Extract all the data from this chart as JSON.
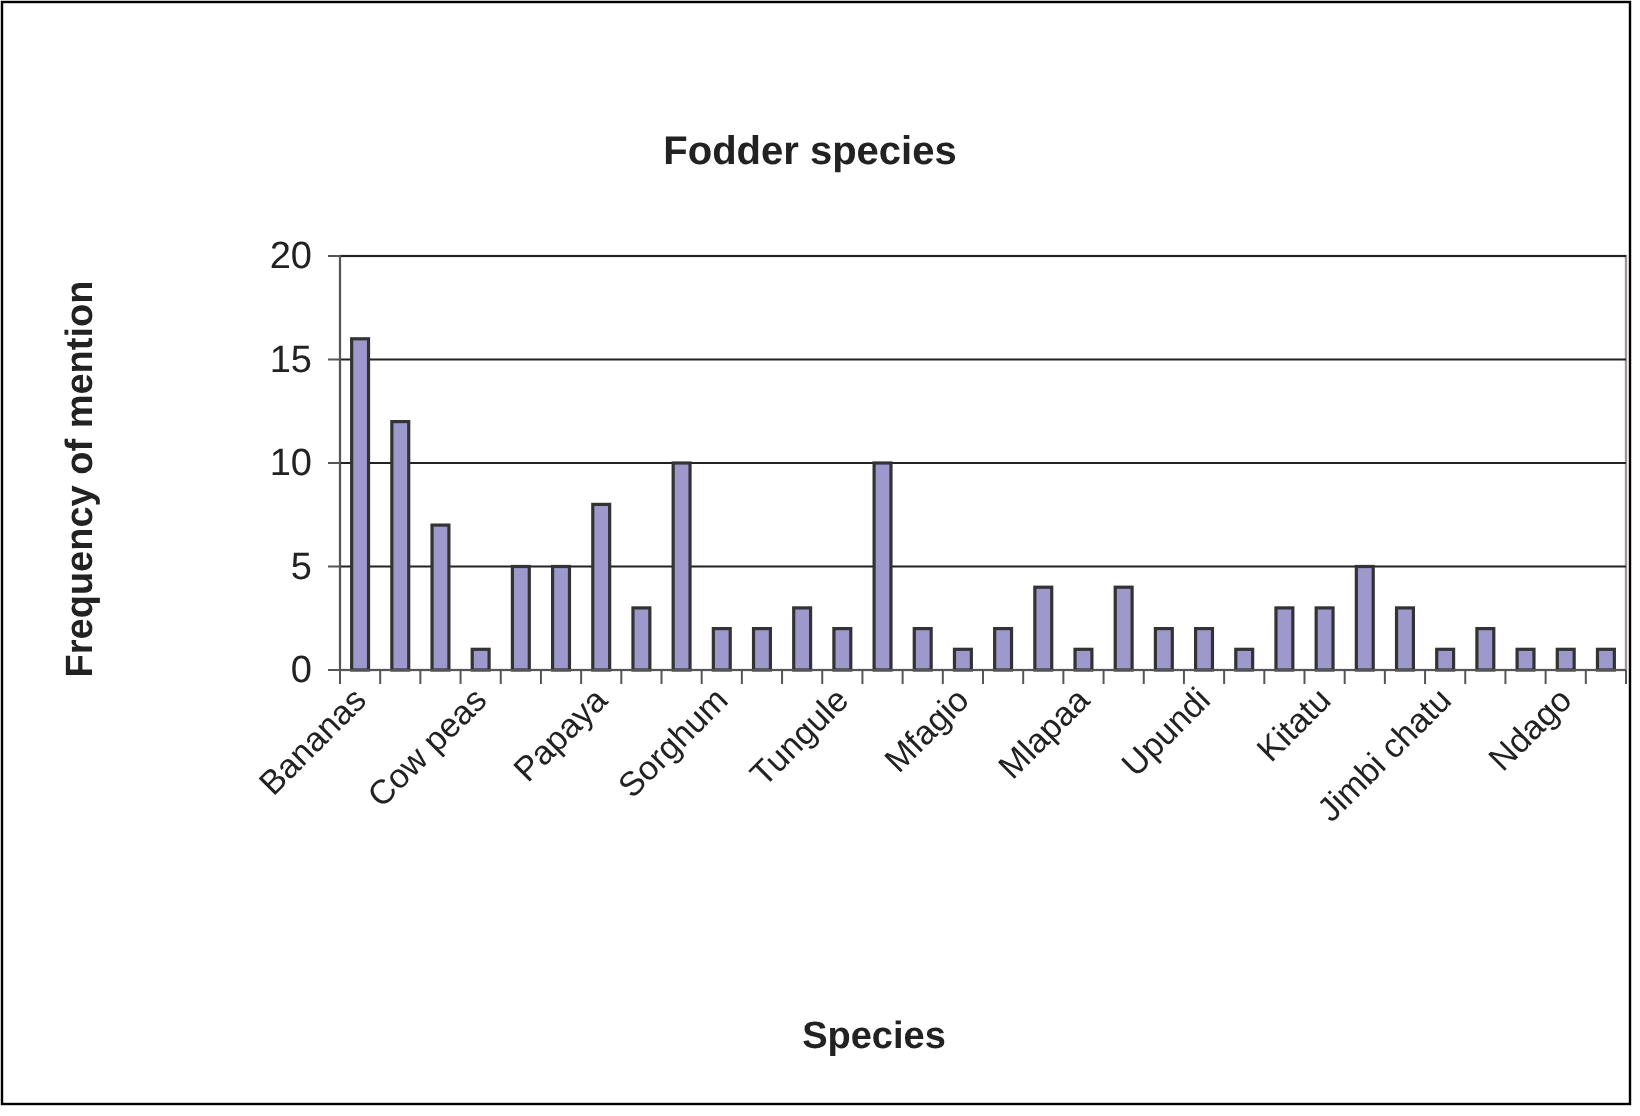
{
  "chart_data": {
    "type": "bar",
    "title": "Fodder species",
    "xlabel": "Species",
    "ylabel": "Frequency of mention",
    "categories": [
      "Bananas",
      null,
      null,
      "Cow peas",
      null,
      null,
      "Papaya",
      null,
      null,
      "Sorghum",
      null,
      null,
      "Tungule",
      null,
      null,
      "Mfagio",
      null,
      null,
      "Mlapaa",
      null,
      null,
      "Upundi",
      null,
      null,
      "Kitatu",
      null,
      null,
      "Jimbi chatu",
      null,
      null,
      "Ndago",
      null
    ],
    "values": [
      16,
      12,
      7,
      1,
      5,
      5,
      8,
      3,
      10,
      2,
      2,
      3,
      2,
      10,
      2,
      1,
      2,
      4,
      1,
      4,
      2,
      2,
      1,
      3,
      3,
      5,
      3,
      1,
      2,
      1,
      1,
      1
    ],
    "color": "#9e99cc",
    "ylim": [
      0,
      20
    ],
    "yticks": [
      0,
      5,
      10,
      15,
      20
    ],
    "grid": "y"
  }
}
